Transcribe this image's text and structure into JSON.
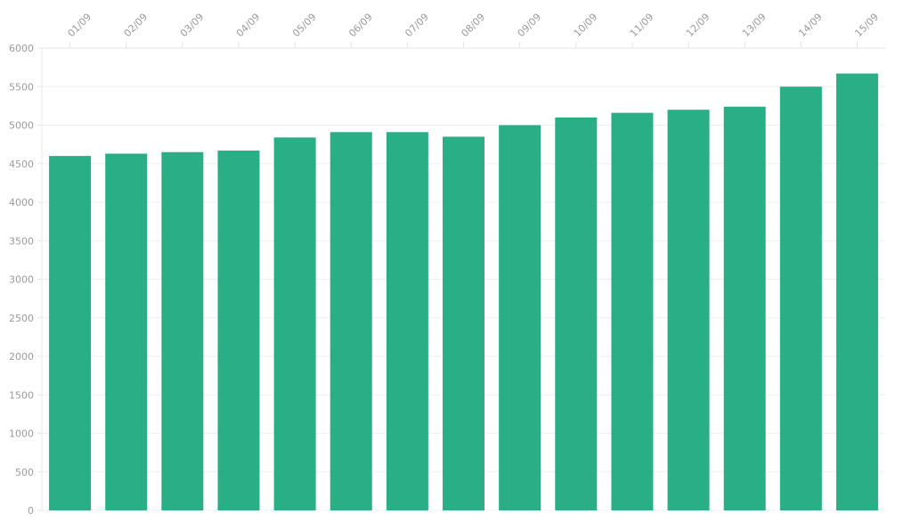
{
  "chart_data": {
    "type": "bar",
    "title": "",
    "xlabel": "",
    "ylabel": "",
    "categories": [
      "01/09",
      "02/09",
      "03/09",
      "04/09",
      "05/09",
      "06/09",
      "07/09",
      "08/09",
      "09/09",
      "10/09",
      "11/09",
      "12/09",
      "13/09",
      "14/09",
      "15/09"
    ],
    "values": [
      4600,
      4630,
      4650,
      4670,
      4840,
      4910,
      4910,
      4850,
      5000,
      5100,
      5160,
      5200,
      5240,
      5500,
      5670
    ],
    "ylim": [
      0,
      6000
    ],
    "yticks": [
      "0",
      "500",
      "1000",
      "1500",
      "2000",
      "2500",
      "3000",
      "3500",
      "4000",
      "4500",
      "5000",
      "5500",
      "6000"
    ],
    "grid": true,
    "x_axis_position": "top",
    "bar_color": "#2aae86"
  }
}
